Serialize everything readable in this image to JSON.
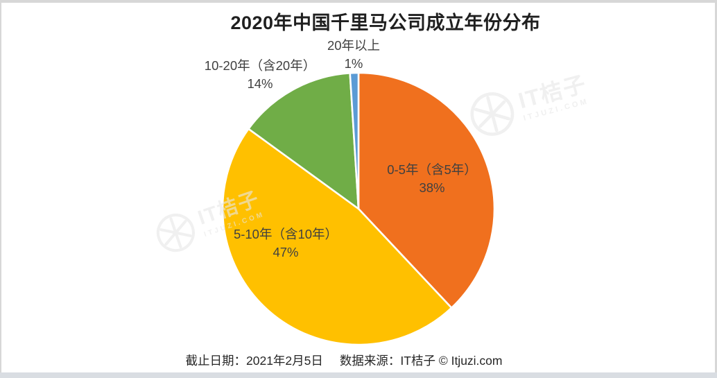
{
  "chart_data": {
    "type": "pie",
    "title": "2020年中国千里马公司成立年份分布",
    "direction": "clockwise",
    "start_angle_deg": 0,
    "legend": "none",
    "slices": [
      {
        "label": "0-5年（含5年）",
        "value": 38,
        "pct": "38%",
        "color": "#F0701E",
        "label_placement": "inside"
      },
      {
        "label": "5-10年（含10年）",
        "value": 47,
        "pct": "47%",
        "color": "#FFC000",
        "label_placement": "inside"
      },
      {
        "label": "10-20年（含20年）",
        "value": 14,
        "pct": "14%",
        "color": "#70AD47",
        "label_placement": "outside"
      },
      {
        "label": "20年以上",
        "value": 1,
        "pct": "1%",
        "color": "#5B9BD5",
        "label_placement": "outside"
      }
    ],
    "slice_border_color": "#ffffff",
    "label_text_color": "#404040"
  },
  "watermark": {
    "brand": "IT桔子",
    "domain": "ITJUZI.COM"
  },
  "footer": {
    "date_label": "截止日期：2021年2月5日",
    "source_label": "数据来源：IT桔子 © Itjuzi.com"
  }
}
